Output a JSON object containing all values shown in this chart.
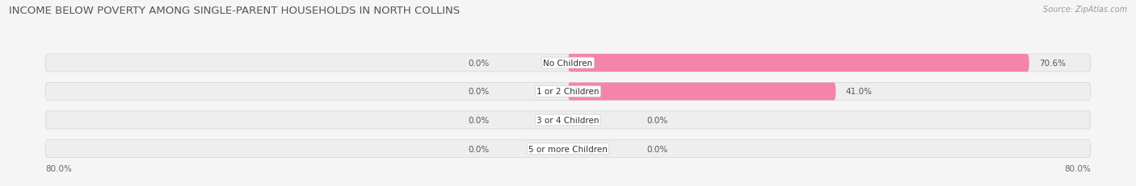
{
  "title": "INCOME BELOW POVERTY AMONG SINGLE-PARENT HOUSEHOLDS IN NORTH COLLINS",
  "source": "Source: ZipAtlas.com",
  "categories": [
    "No Children",
    "1 or 2 Children",
    "3 or 4 Children",
    "5 or more Children"
  ],
  "single_father": [
    0.0,
    0.0,
    0.0,
    0.0
  ],
  "single_mother": [
    70.6,
    41.0,
    0.0,
    0.0
  ],
  "father_color": "#aac4e0",
  "mother_color": "#f585a8",
  "axis_min": -80.0,
  "axis_max": 80.0,
  "bg_color": "#f5f5f5",
  "bar_bg_color": "#eeeeee",
  "bar_border_color": "#d8d8d8",
  "title_color": "#555555",
  "label_color": "#666666",
  "source_color": "#999999",
  "title_fontsize": 9.5,
  "label_fontsize": 7.5,
  "tick_fontsize": 7.5,
  "value_label_color": "#555555"
}
